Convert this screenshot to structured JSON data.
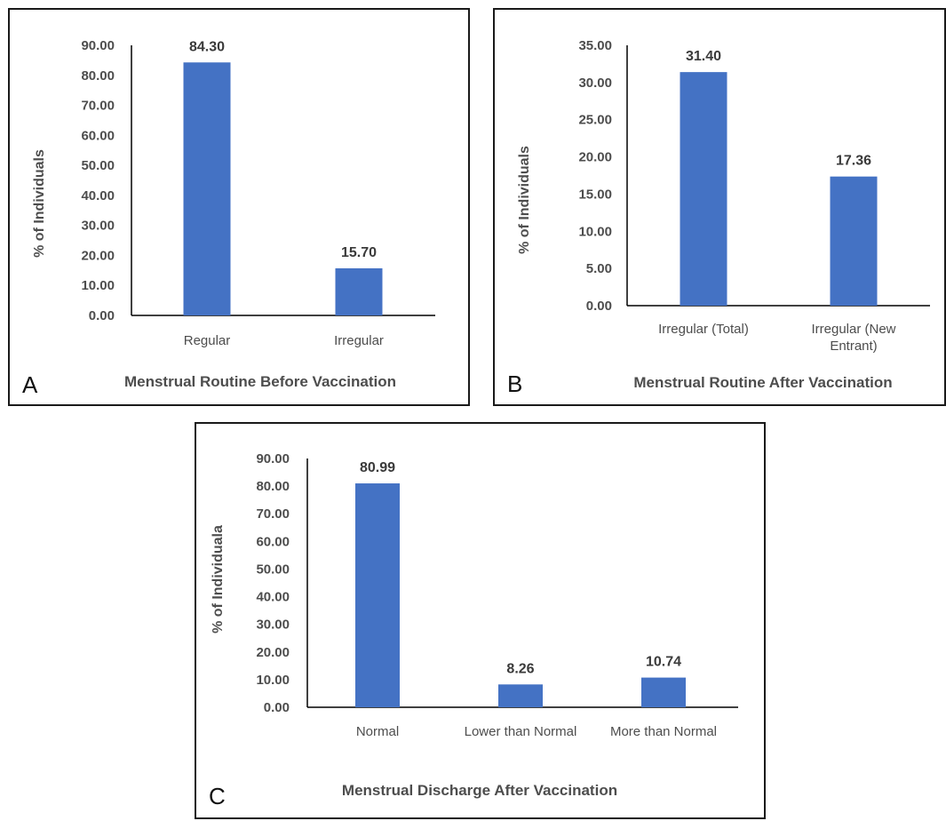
{
  "chart_data": [
    {
      "type": "bar",
      "panel_letter": "A",
      "categories": [
        "Regular",
        "Irregular"
      ],
      "values": [
        84.3,
        15.7
      ],
      "value_labels": [
        "84.30",
        "15.70"
      ],
      "xlabel": "Menstrual Routine Before Vaccination",
      "ylabel": "% of Individuals",
      "ylim": [
        0,
        90
      ],
      "yticks": [
        "0.00",
        "10.00",
        "20.00",
        "30.00",
        "40.00",
        "50.00",
        "60.00",
        "70.00",
        "80.00",
        "90.00"
      ],
      "bar_color": "#4472c4",
      "grid": false
    },
    {
      "type": "bar",
      "panel_letter": "B",
      "categories": [
        "Irregular (Total)",
        "Irregular (New Entrant)"
      ],
      "category_lines": [
        [
          "Irregular (Total)"
        ],
        [
          "Irregular (New",
          "Entrant)"
        ]
      ],
      "values": [
        31.4,
        17.36
      ],
      "value_labels": [
        "31.40",
        "17.36"
      ],
      "xlabel": "Menstrual Routine After Vaccination",
      "ylabel": "% of Individuals",
      "ylim": [
        0,
        35
      ],
      "yticks": [
        "0.00",
        "5.00",
        "10.00",
        "15.00",
        "20.00",
        "25.00",
        "30.00",
        "35.00"
      ],
      "bar_color": "#4472c4",
      "grid": false
    },
    {
      "type": "bar",
      "panel_letter": "C",
      "categories": [
        "Normal",
        "Lower than Normal",
        "More than Normal"
      ],
      "values": [
        80.99,
        8.26,
        10.74
      ],
      "value_labels": [
        "80.99",
        "8.26",
        "10.74"
      ],
      "xlabel": "Menstrual Discharge After Vaccination",
      "ylabel": "% of Individuala",
      "ylim": [
        0,
        90
      ],
      "yticks": [
        "0.00",
        "10.00",
        "20.00",
        "30.00",
        "40.00",
        "50.00",
        "60.00",
        "70.00",
        "80.00",
        "90.00"
      ],
      "bar_color": "#4472c4",
      "grid": false
    }
  ]
}
